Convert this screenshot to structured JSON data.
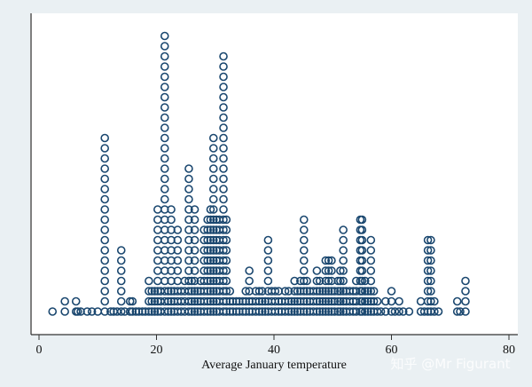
{
  "chart_data": {
    "type": "scatter",
    "subtype": "dotplot",
    "title": "",
    "xlabel": "Average January temperature",
    "ylabel": "",
    "xlim": [
      0,
      80
    ],
    "xticks": [
      "0",
      "20",
      "40",
      "60",
      "80"
    ],
    "grid": false,
    "legend": "none",
    "marker": "hollow-circle",
    "colors": {
      "marker": "#1a476f",
      "background": "#eaf0f3",
      "plot": "#ffffff",
      "axis": "#333333"
    },
    "stacks": [
      [
        2.3,
        1
      ],
      [
        4.4,
        2
      ],
      [
        6.3,
        2
      ],
      [
        6.6,
        1
      ],
      [
        7.1,
        1
      ],
      [
        8.2,
        1
      ],
      [
        9.0,
        1
      ],
      [
        10.0,
        1
      ],
      [
        11.2,
        18
      ],
      [
        12.2,
        1
      ],
      [
        12.7,
        1
      ],
      [
        13.3,
        1
      ],
      [
        14.0,
        7
      ],
      [
        14.6,
        1
      ],
      [
        15.5,
        2
      ],
      [
        15.9,
        2
      ],
      [
        16.5,
        1
      ],
      [
        17.0,
        1
      ],
      [
        17.6,
        1
      ],
      [
        18.1,
        1
      ],
      [
        18.7,
        4
      ],
      [
        19.2,
        3
      ],
      [
        19.7,
        3
      ],
      [
        20.2,
        11
      ],
      [
        20.7,
        3
      ],
      [
        21.4,
        28
      ],
      [
        22.0,
        3
      ],
      [
        22.5,
        11
      ],
      [
        23.0,
        3
      ],
      [
        23.6,
        9
      ],
      [
        24.2,
        3
      ],
      [
        24.8,
        4
      ],
      [
        25.5,
        15
      ],
      [
        26.0,
        4
      ],
      [
        26.5,
        11
      ],
      [
        27.0,
        3
      ],
      [
        27.5,
        4
      ],
      [
        28.1,
        9
      ],
      [
        28.7,
        10
      ],
      [
        29.2,
        11
      ],
      [
        29.7,
        18
      ],
      [
        30.2,
        10
      ],
      [
        30.7,
        10
      ],
      [
        31.4,
        26
      ],
      [
        31.9,
        10
      ],
      [
        32.5,
        3
      ],
      [
        33.0,
        2
      ],
      [
        33.6,
        2
      ],
      [
        34.1,
        2
      ],
      [
        34.7,
        2
      ],
      [
        35.2,
        3
      ],
      [
        35.8,
        5
      ],
      [
        36.3,
        2
      ],
      [
        36.9,
        3
      ],
      [
        37.5,
        3
      ],
      [
        38.0,
        3
      ],
      [
        38.5,
        2
      ],
      [
        39.0,
        8
      ],
      [
        39.6,
        3
      ],
      [
        40.2,
        3
      ],
      [
        40.8,
        3
      ],
      [
        41.3,
        2
      ],
      [
        41.9,
        3
      ],
      [
        42.5,
        3
      ],
      [
        43.0,
        2
      ],
      [
        43.5,
        4
      ],
      [
        44.0,
        3
      ],
      [
        44.5,
        4
      ],
      [
        45.1,
        10
      ],
      [
        45.6,
        4
      ],
      [
        46.1,
        3
      ],
      [
        46.7,
        3
      ],
      [
        47.3,
        5
      ],
      [
        47.8,
        4
      ],
      [
        48.3,
        3
      ],
      [
        48.8,
        6
      ],
      [
        49.3,
        6
      ],
      [
        49.8,
        6
      ],
      [
        50.3,
        3
      ],
      [
        50.9,
        4
      ],
      [
        51.3,
        5
      ],
      [
        51.8,
        9
      ],
      [
        52.3,
        3
      ],
      [
        52.9,
        3
      ],
      [
        53.5,
        3
      ],
      [
        54.0,
        4
      ],
      [
        54.7,
        10
      ],
      [
        55.0,
        10
      ],
      [
        55.5,
        4
      ],
      [
        56.0,
        3
      ],
      [
        56.5,
        8
      ],
      [
        57.0,
        3
      ],
      [
        57.6,
        2
      ],
      [
        58.2,
        1
      ],
      [
        59.0,
        2
      ],
      [
        60.0,
        3
      ],
      [
        60.6,
        1
      ],
      [
        61.3,
        2
      ],
      [
        62.0,
        1
      ],
      [
        63.0,
        1
      ],
      [
        65.0,
        2
      ],
      [
        65.6,
        1
      ],
      [
        66.2,
        8
      ],
      [
        66.7,
        8
      ],
      [
        67.3,
        2
      ],
      [
        68.0,
        1
      ],
      [
        71.2,
        2
      ],
      [
        71.7,
        1
      ],
      [
        72.6,
        4
      ]
    ]
  },
  "watermark": "知乎 @Mr Figurant"
}
